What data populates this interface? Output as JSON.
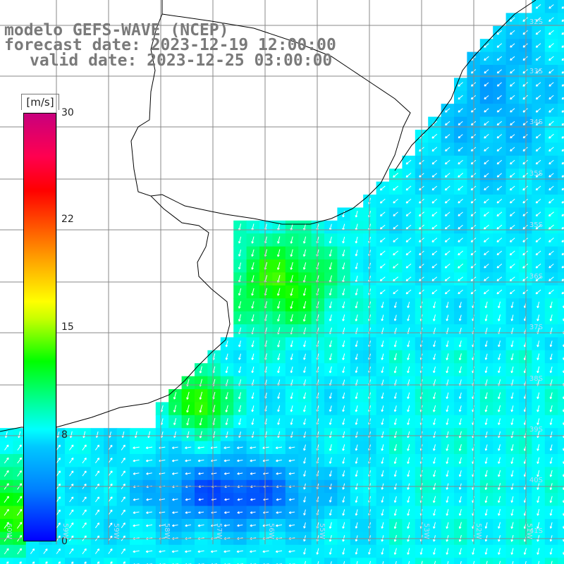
{
  "title": {
    "line1": "modelo GEFS-WAVE (NCEP)",
    "line2": "forecast date: 2023-12-19 12:00:00",
    "line3": "valid date: 2023-12-25 03:00:00"
  },
  "colorbar": {
    "unit": "[m/s]",
    "min": 0,
    "max": 30,
    "ticks": [
      "30",
      "22",
      "15",
      "8",
      "0"
    ],
    "tick_values": [
      30,
      22,
      15,
      8,
      0
    ],
    "colors": [
      "#0000ff",
      "#00b4ff",
      "#00ffff",
      "#00ff00",
      "#ffff00",
      "#ff8c00",
      "#ff0000",
      "#c8007d"
    ]
  },
  "lat_labels": [
    "32S",
    "33S",
    "34S",
    "35S",
    "36S",
    "37S",
    "38S",
    "39S",
    "40S",
    "41S"
  ],
  "lon_labels": [
    "60W",
    "59W",
    "58W",
    "57W",
    "56W",
    "55W",
    "54W",
    "53W",
    "52W",
    "51W"
  ],
  "map": {
    "field": "wind speed",
    "ocean_color": "#00b4ff",
    "land_color": "#ffffff",
    "gridline_color": "#888888",
    "arrow_color": "#ffffff",
    "coastline_color": "#000000"
  }
}
